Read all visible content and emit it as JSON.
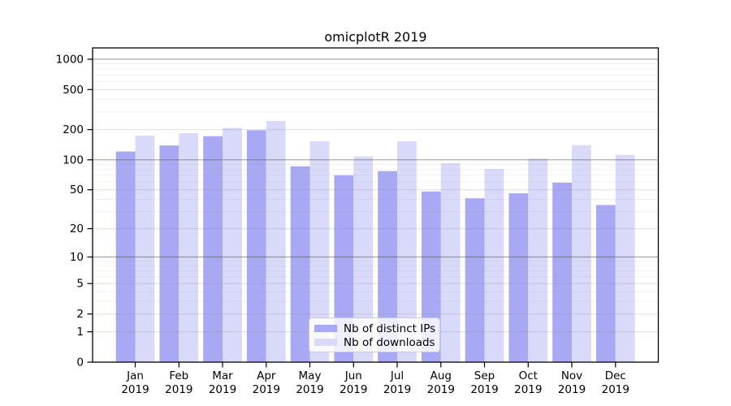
{
  "title": "omicplotR 2019",
  "legend": {
    "items": [
      {
        "label": "Nb of distinct IPs",
        "color": "#a8a8f4"
      },
      {
        "label": "Nb of downloads",
        "color": "#d9d9f9"
      }
    ]
  },
  "chart_data": {
    "type": "bar",
    "title": "omicplotR 2019",
    "categories": [
      "Jan 2019",
      "Feb 2019",
      "Mar 2019",
      "Apr 2019",
      "May 2019",
      "Jun 2019",
      "Jul 2019",
      "Aug 2019",
      "Sep 2019",
      "Oct 2019",
      "Nov 2019",
      "Dec 2019"
    ],
    "series": [
      {
        "name": "Nb of distinct IPs",
        "color": "#a8a8f4",
        "values": [
          121,
          139,
          172,
          197,
          86,
          70,
          77,
          48,
          41,
          46,
          59,
          35
        ]
      },
      {
        "name": "Nb of downloads",
        "color": "#d9d9f9",
        "values": [
          174,
          184,
          208,
          244,
          153,
          108,
          153,
          93,
          81,
          103,
          140,
          112
        ]
      }
    ],
    "xlabel": "",
    "ylabel": "",
    "yscale": "log1p",
    "yticks": [
      0,
      1,
      2,
      5,
      10,
      20,
      50,
      100,
      200,
      500,
      1000
    ],
    "major_gridlines": [
      10,
      100,
      1000
    ],
    "minor_gridlines": [
      3,
      4,
      6,
      7,
      8,
      9,
      30,
      40,
      60,
      70,
      80,
      90,
      300,
      400,
      600,
      700,
      800,
      900
    ],
    "ylim": [
      0,
      1300
    ],
    "grid": true,
    "legend_position": "lower-center"
  }
}
